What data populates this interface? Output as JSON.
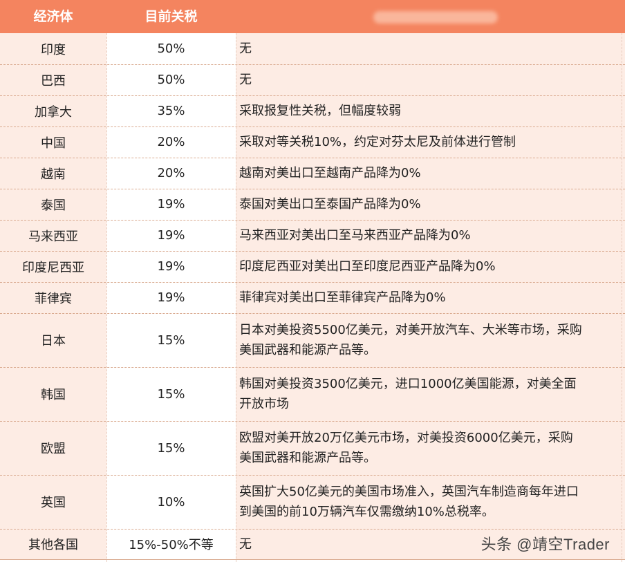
{
  "header": {
    "col1": "经济体",
    "col2": "目前关税"
  },
  "rows": [
    {
      "economy": "印度",
      "tariff": "50%",
      "note": "无"
    },
    {
      "economy": "巴西",
      "tariff": "50%",
      "note": "无"
    },
    {
      "economy": "加拿大",
      "tariff": "35%",
      "note": "采取报复性关税，但幅度较弱"
    },
    {
      "economy": "中国",
      "tariff": "20%",
      "note": "采取对等关税10%，约定对芬太尼及前体进行管制"
    },
    {
      "economy": "越南",
      "tariff": "20%",
      "note": "越南对美出口至越南产品降为0%"
    },
    {
      "economy": "泰国",
      "tariff": "19%",
      "note": "泰国对美出口至泰国产品降为0%"
    },
    {
      "economy": "马来西亚",
      "tariff": "19%",
      "note": "马来西亚对美出口至马来西亚产品降为0%"
    },
    {
      "economy": "印度尼西亚",
      "tariff": "19%",
      "note": "印度尼西亚对美出口至印度尼西亚产品降为0%"
    },
    {
      "economy": "菲律宾",
      "tariff": "19%",
      "note": "菲律宾对美出口至菲律宾产品降为0%"
    },
    {
      "economy": "日本",
      "tariff": "15%",
      "note1": "日本对美投资5500亿美元，对美开放汽车、大米等市场，采购",
      "note2": "美国武器和能源产品等。"
    },
    {
      "economy": "韩国",
      "tariff": "15%",
      "note1": "韩国对美投资3500亿美元，进口1000亿美国能源，对美全面",
      "note2": "开放市场"
    },
    {
      "economy": "欧盟",
      "tariff": "15%",
      "note1": "欧盟对美开放20万亿美元市场，对美投资6000亿美元，采购",
      "note2": "美国武器和能源产品等。"
    },
    {
      "economy": "英国",
      "tariff": "10%",
      "note1": "英国扩大50亿美元的美国市场准入，英国汽车制造商每年进口",
      "note2": "到美国的前10万辆汽车仅需缴纳10%总税率。"
    },
    {
      "economy": "其他各国",
      "tariff": "15%-50%不等",
      "note": "无"
    }
  ],
  "watermark": "头条 @靖空Trader"
}
